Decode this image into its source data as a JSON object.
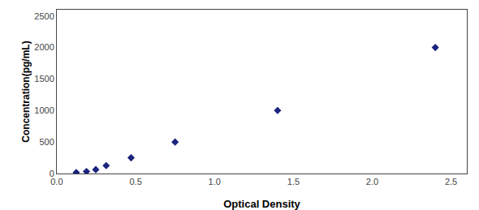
{
  "chart_data": {
    "type": "scatter",
    "xlabel": "Optical Density",
    "ylabel": "Concentration(pg/mL)",
    "x": [
      0.123,
      0.188,
      0.247,
      0.313,
      0.471,
      0.75,
      1.4,
      2.4
    ],
    "values": [
      15.6,
      31.2,
      62.5,
      125.0,
      250.0,
      500.0,
      1000.0,
      2000.0
    ],
    "x_errors": [
      0.008,
      0.008,
      0.008,
      0.008,
      0.008,
      0.008,
      0.008,
      0.008
    ],
    "y_errors": [
      0.1872,
      0.3744,
      0.75,
      1.5,
      3,
      6,
      12,
      24
    ],
    "xlim": [
      0,
      2.6
    ],
    "ylim": [
      0,
      2600
    ],
    "xticks": [
      {
        "value": 0,
        "label": "0.0"
      },
      0.5,
      {
        "value": 1,
        "label": "1.0"
      },
      1.5,
      {
        "value": 2,
        "label": "2.0"
      },
      2.5
    ],
    "yticks": [
      0,
      500,
      1000,
      1500,
      2000,
      2500
    ],
    "color": "#1a237e",
    "marker": "diamond",
    "grid": false
  }
}
